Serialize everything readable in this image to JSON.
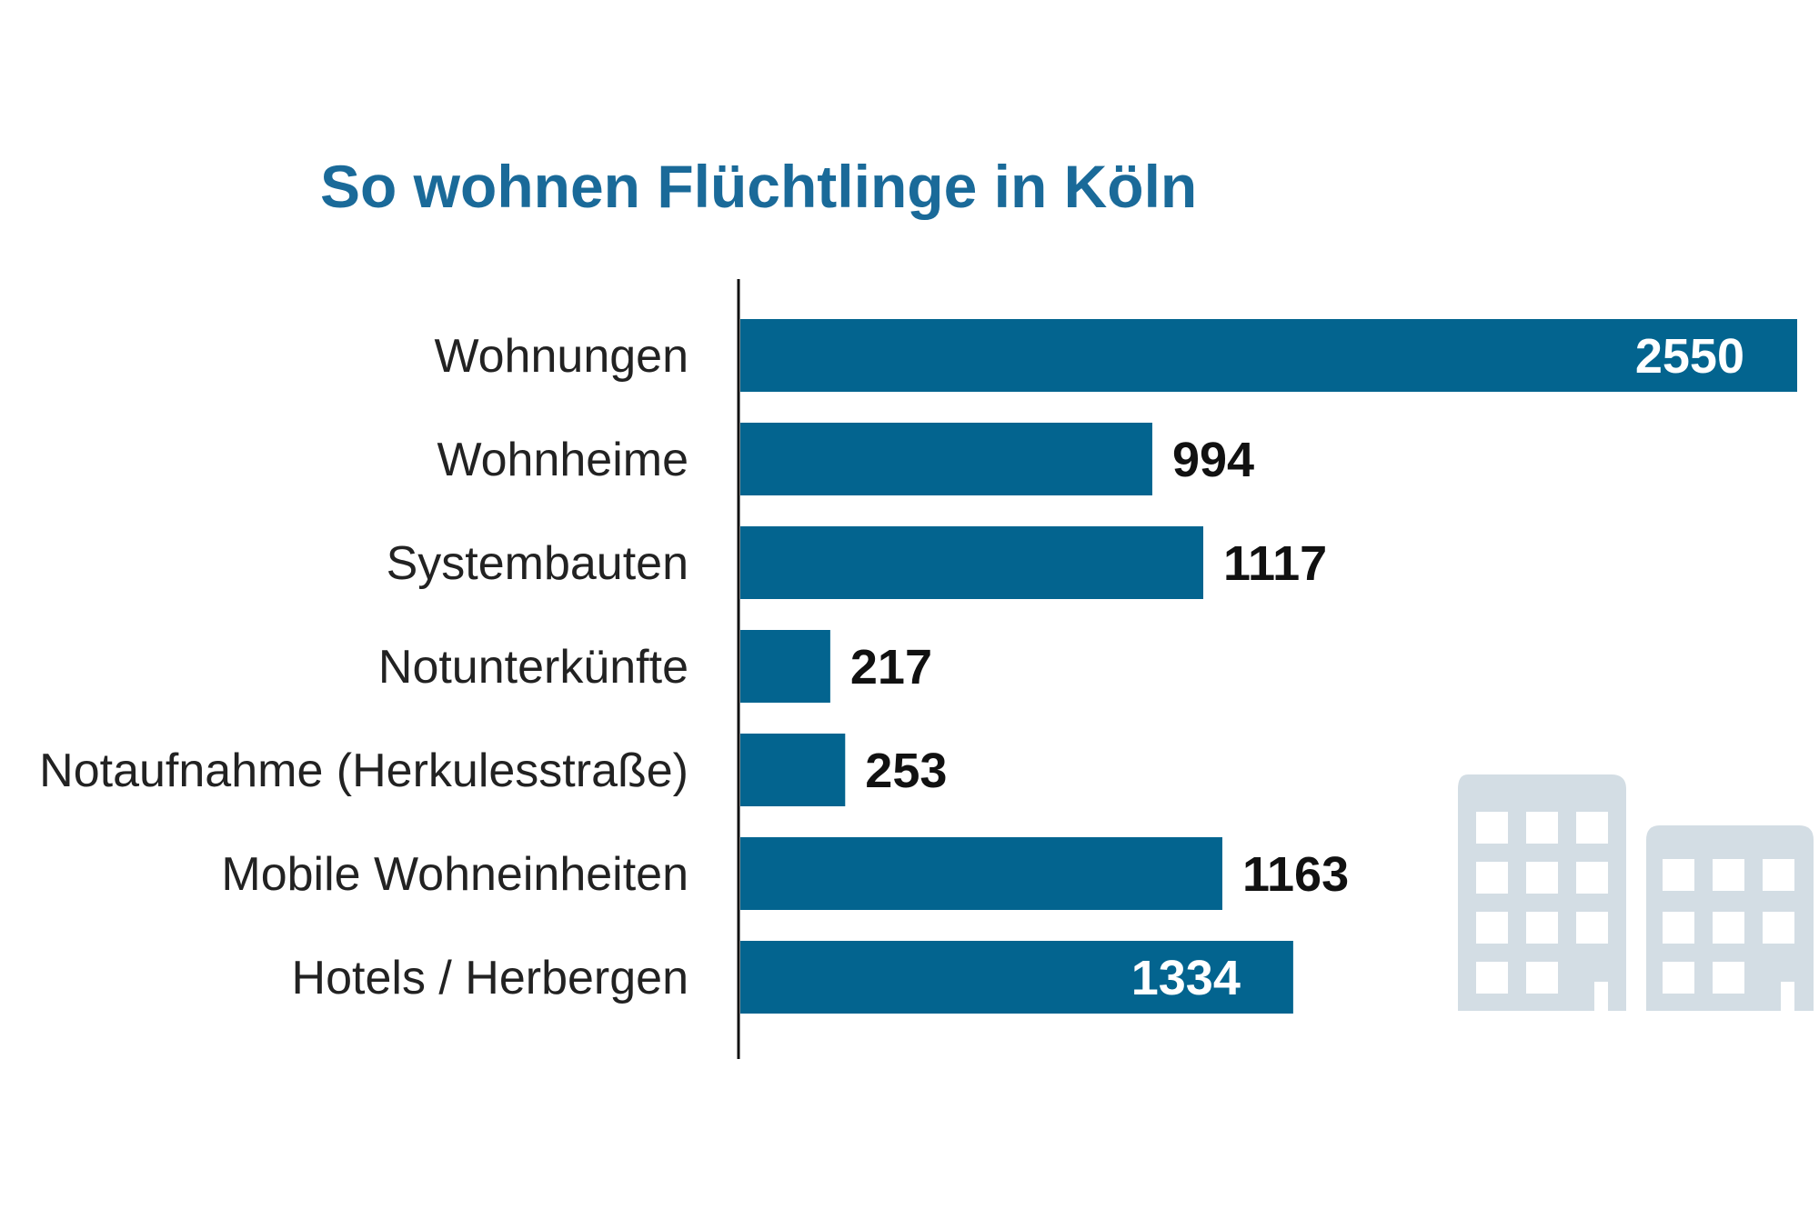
{
  "chart_data": {
    "type": "bar",
    "orientation": "horizontal",
    "title": "So wohnen Flüchtlinge in Köln",
    "categories": [
      "Wohnungen",
      "Wohnheime",
      "Systembauten",
      "Notunterkünfte",
      "Notaufnahme (Herkulesstraße)",
      "Mobile Wohneinheiten",
      "Hotels / Herbergen"
    ],
    "values": [
      2550,
      994,
      1117,
      217,
      253,
      1163,
      1334
    ],
    "value_labels": [
      "2550",
      "994",
      "1117",
      "217",
      "253",
      "1163",
      "1334"
    ],
    "xlim": [
      0,
      2550
    ],
    "grid": false,
    "legend": "none",
    "colors": {
      "bar": "#03648f",
      "title": "#1a6a99",
      "label_inside": "#ffffff",
      "label_outside": "#111111",
      "axis": "#111111",
      "decoration": "#d3dde4"
    },
    "decoration": "buildings-icon"
  }
}
